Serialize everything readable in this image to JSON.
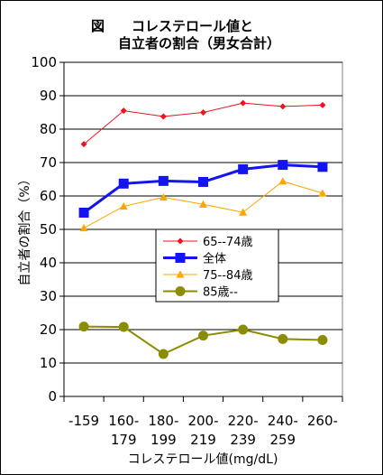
{
  "chart_data": {
    "type": "line",
    "title_line1": "図　　コレステロール値と",
    "title_line2": "自立者の割合（男女合計）",
    "ylabel": "自立者の割合（%）",
    "xlabel": "コレステロール値(mg/dL)",
    "ylim": [
      0,
      100
    ],
    "yticks": [
      0,
      10,
      20,
      30,
      40,
      50,
      60,
      70,
      80,
      90,
      100
    ],
    "grid": true,
    "legend_position": "center-right",
    "categories": [
      [
        "-159"
      ],
      [
        "160-",
        "179"
      ],
      [
        "180-",
        "199"
      ],
      [
        "200-",
        "219"
      ],
      [
        "220-",
        "239"
      ],
      [
        "240-",
        "259"
      ],
      [
        "260-"
      ]
    ],
    "series": [
      {
        "name": "65--74歳",
        "color": "#e8141e",
        "marker": "diamond",
        "values": [
          75.5,
          85.5,
          83.8,
          85.0,
          87.8,
          86.8,
          87.2
        ]
      },
      {
        "name": "全体",
        "color": "#1414f0",
        "marker": "square",
        "values": [
          55.0,
          63.7,
          64.5,
          64.2,
          68.0,
          69.3,
          68.7
        ]
      },
      {
        "name": "75--84歳",
        "color": "#ffa500",
        "marker": "triangle",
        "values": [
          50.4,
          56.9,
          59.6,
          57.5,
          55.1,
          64.4,
          60.8
        ]
      },
      {
        "name": "85歳--",
        "color": "#8c8c00",
        "marker": "circle",
        "values": [
          20.9,
          20.8,
          12.7,
          18.2,
          20.0,
          17.2,
          16.9
        ]
      }
    ]
  }
}
